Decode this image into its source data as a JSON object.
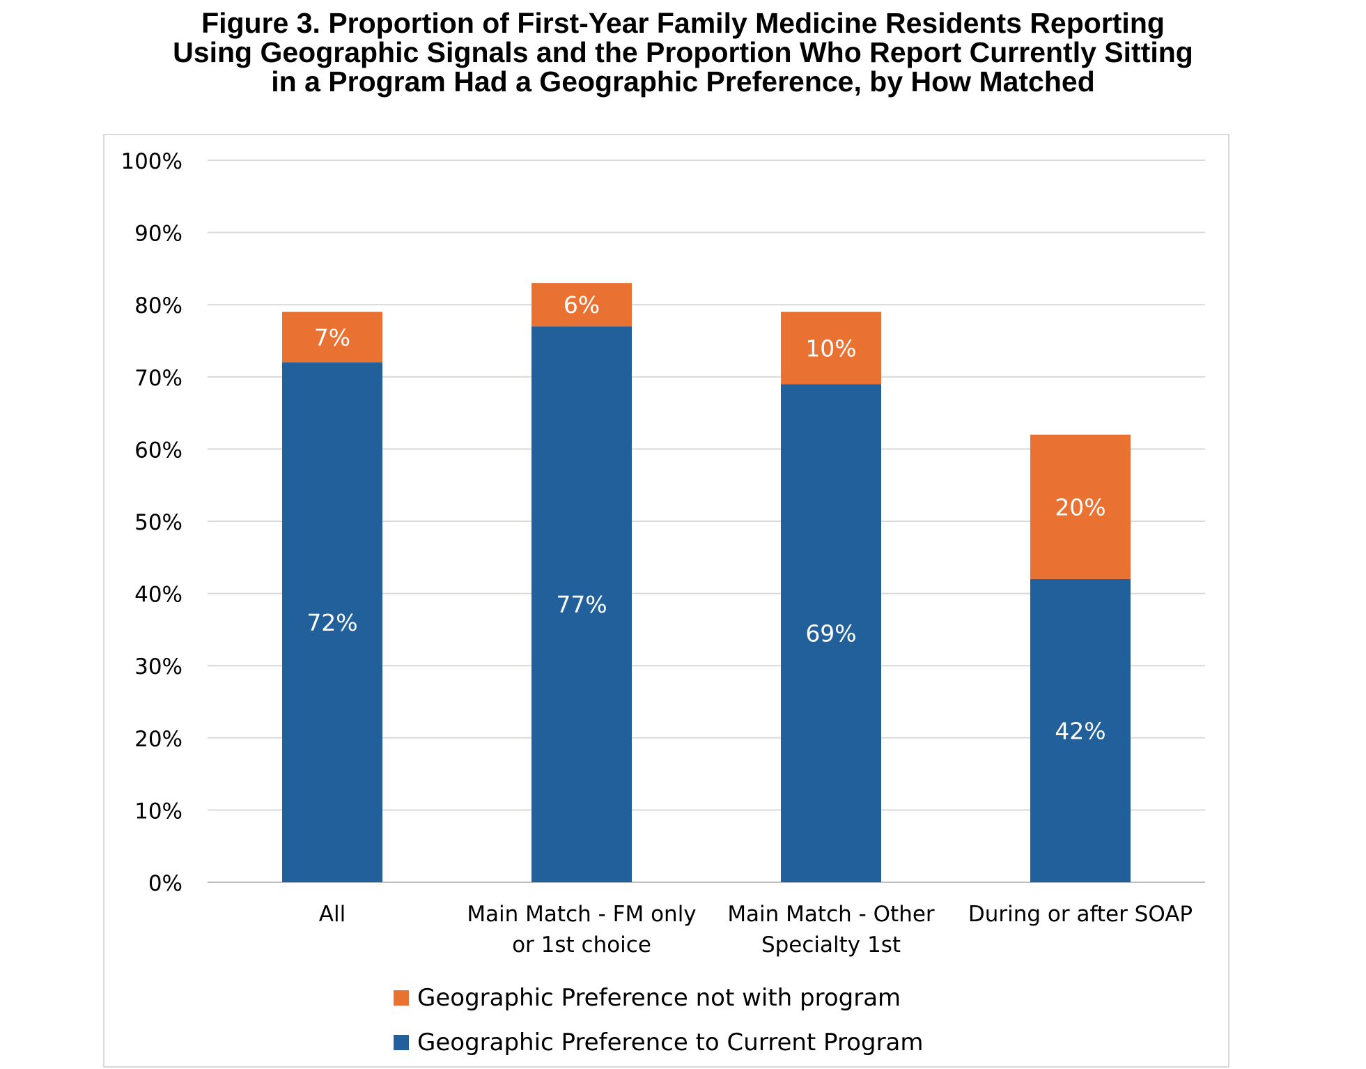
{
  "title": {
    "line1": "Figure 3. Proportion of First-Year Family Medicine Residents Reporting",
    "line2": "Using Geographic Signals and the Proportion Who Report Currently Sitting",
    "line3": "in a Program Had a Geographic Preference, by How Matched"
  },
  "chart_data": {
    "type": "bar",
    "stacked": true,
    "categories": [
      [
        "All"
      ],
      [
        "Main Match - FM only",
        "or 1st choice"
      ],
      [
        "Main Match - Other",
        "Specialty 1st"
      ],
      [
        "During or after SOAP"
      ]
    ],
    "series": [
      {
        "name": "Geographic Preference to Current Program",
        "color": "#22609b",
        "values": [
          72,
          77,
          69,
          42
        ],
        "labels": [
          "72%",
          "77%",
          "69%",
          "42%"
        ]
      },
      {
        "name": "Geographic Preference not with program",
        "color": "#e97132",
        "values": [
          7,
          6,
          10,
          20
        ],
        "labels": [
          "7%",
          "6%",
          "10%",
          "20%"
        ]
      }
    ],
    "ylim": [
      0,
      100
    ],
    "yticks": [
      "0%",
      "10%",
      "20%",
      "30%",
      "40%",
      "50%",
      "60%",
      "70%",
      "80%",
      "90%",
      "100%"
    ],
    "grid": true,
    "legend_position": "bottom",
    "legend_order": [
      1,
      0
    ]
  }
}
